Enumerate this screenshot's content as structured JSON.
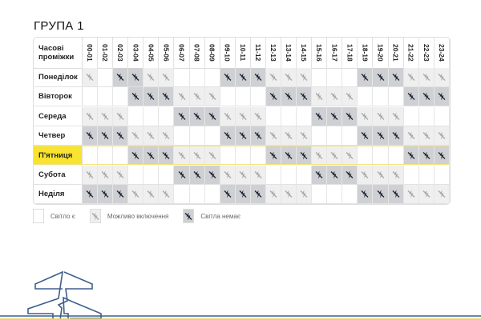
{
  "title": "ГРУПА 1",
  "table": {
    "corner_label": "Часові проміжки",
    "hours": [
      "00-01",
      "01-02",
      "02-03",
      "03-04",
      "04-05",
      "05-06",
      "06-07",
      "07-08",
      "08-09",
      "09-10",
      "10-11",
      "11-12",
      "12-13",
      "13-14",
      "14-15",
      "15-16",
      "16-17",
      "17-18",
      "18-19",
      "19-20",
      "20-21",
      "21-22",
      "22-23",
      "23-24"
    ],
    "highlighted_day": "П'ятниця",
    "days": [
      {
        "name": "Понеділок",
        "states": [
          1,
          0,
          2,
          2,
          1,
          1,
          0,
          0,
          0,
          2,
          2,
          2,
          1,
          1,
          1,
          0,
          0,
          0,
          2,
          2,
          2,
          1,
          1,
          1
        ]
      },
      {
        "name": "Вівторок",
        "states": [
          0,
          0,
          0,
          2,
          2,
          2,
          1,
          1,
          1,
          0,
          0,
          0,
          2,
          2,
          2,
          1,
          1,
          1,
          0,
          0,
          0,
          2,
          2,
          2
        ]
      },
      {
        "name": "Середа",
        "states": [
          1,
          1,
          1,
          0,
          0,
          0,
          2,
          2,
          2,
          1,
          1,
          1,
          0,
          0,
          0,
          2,
          2,
          2,
          1,
          1,
          1,
          0,
          0,
          0
        ]
      },
      {
        "name": "Четвер",
        "states": [
          2,
          2,
          2,
          1,
          1,
          1,
          0,
          0,
          0,
          2,
          2,
          2,
          1,
          1,
          1,
          0,
          0,
          0,
          2,
          2,
          2,
          1,
          1,
          1
        ]
      },
      {
        "name": "П'ятниця",
        "states": [
          0,
          0,
          0,
          2,
          2,
          2,
          1,
          1,
          1,
          0,
          0,
          0,
          2,
          2,
          2,
          1,
          1,
          1,
          0,
          0,
          0,
          2,
          2,
          2
        ]
      },
      {
        "name": "Субота",
        "states": [
          1,
          1,
          1,
          0,
          0,
          0,
          2,
          2,
          2,
          1,
          1,
          1,
          0,
          0,
          0,
          2,
          2,
          2,
          1,
          1,
          1,
          0,
          0,
          0
        ]
      },
      {
        "name": "Неділя",
        "states": [
          2,
          2,
          2,
          1,
          1,
          1,
          0,
          0,
          0,
          2,
          2,
          2,
          1,
          1,
          1,
          0,
          0,
          0,
          2,
          2,
          2,
          1,
          1,
          1
        ]
      }
    ]
  },
  "legend": {
    "on": "Світло є",
    "maybe": "Можливо включення",
    "off": "Світла немає"
  },
  "colors": {
    "highlight": "#f7e330",
    "maybe_bg": "#efefef",
    "off_bg": "#cfd0d3",
    "maybe_icon": "#a8a8a8",
    "off_icon": "#1e2535",
    "tower": "#3d5f8f"
  }
}
